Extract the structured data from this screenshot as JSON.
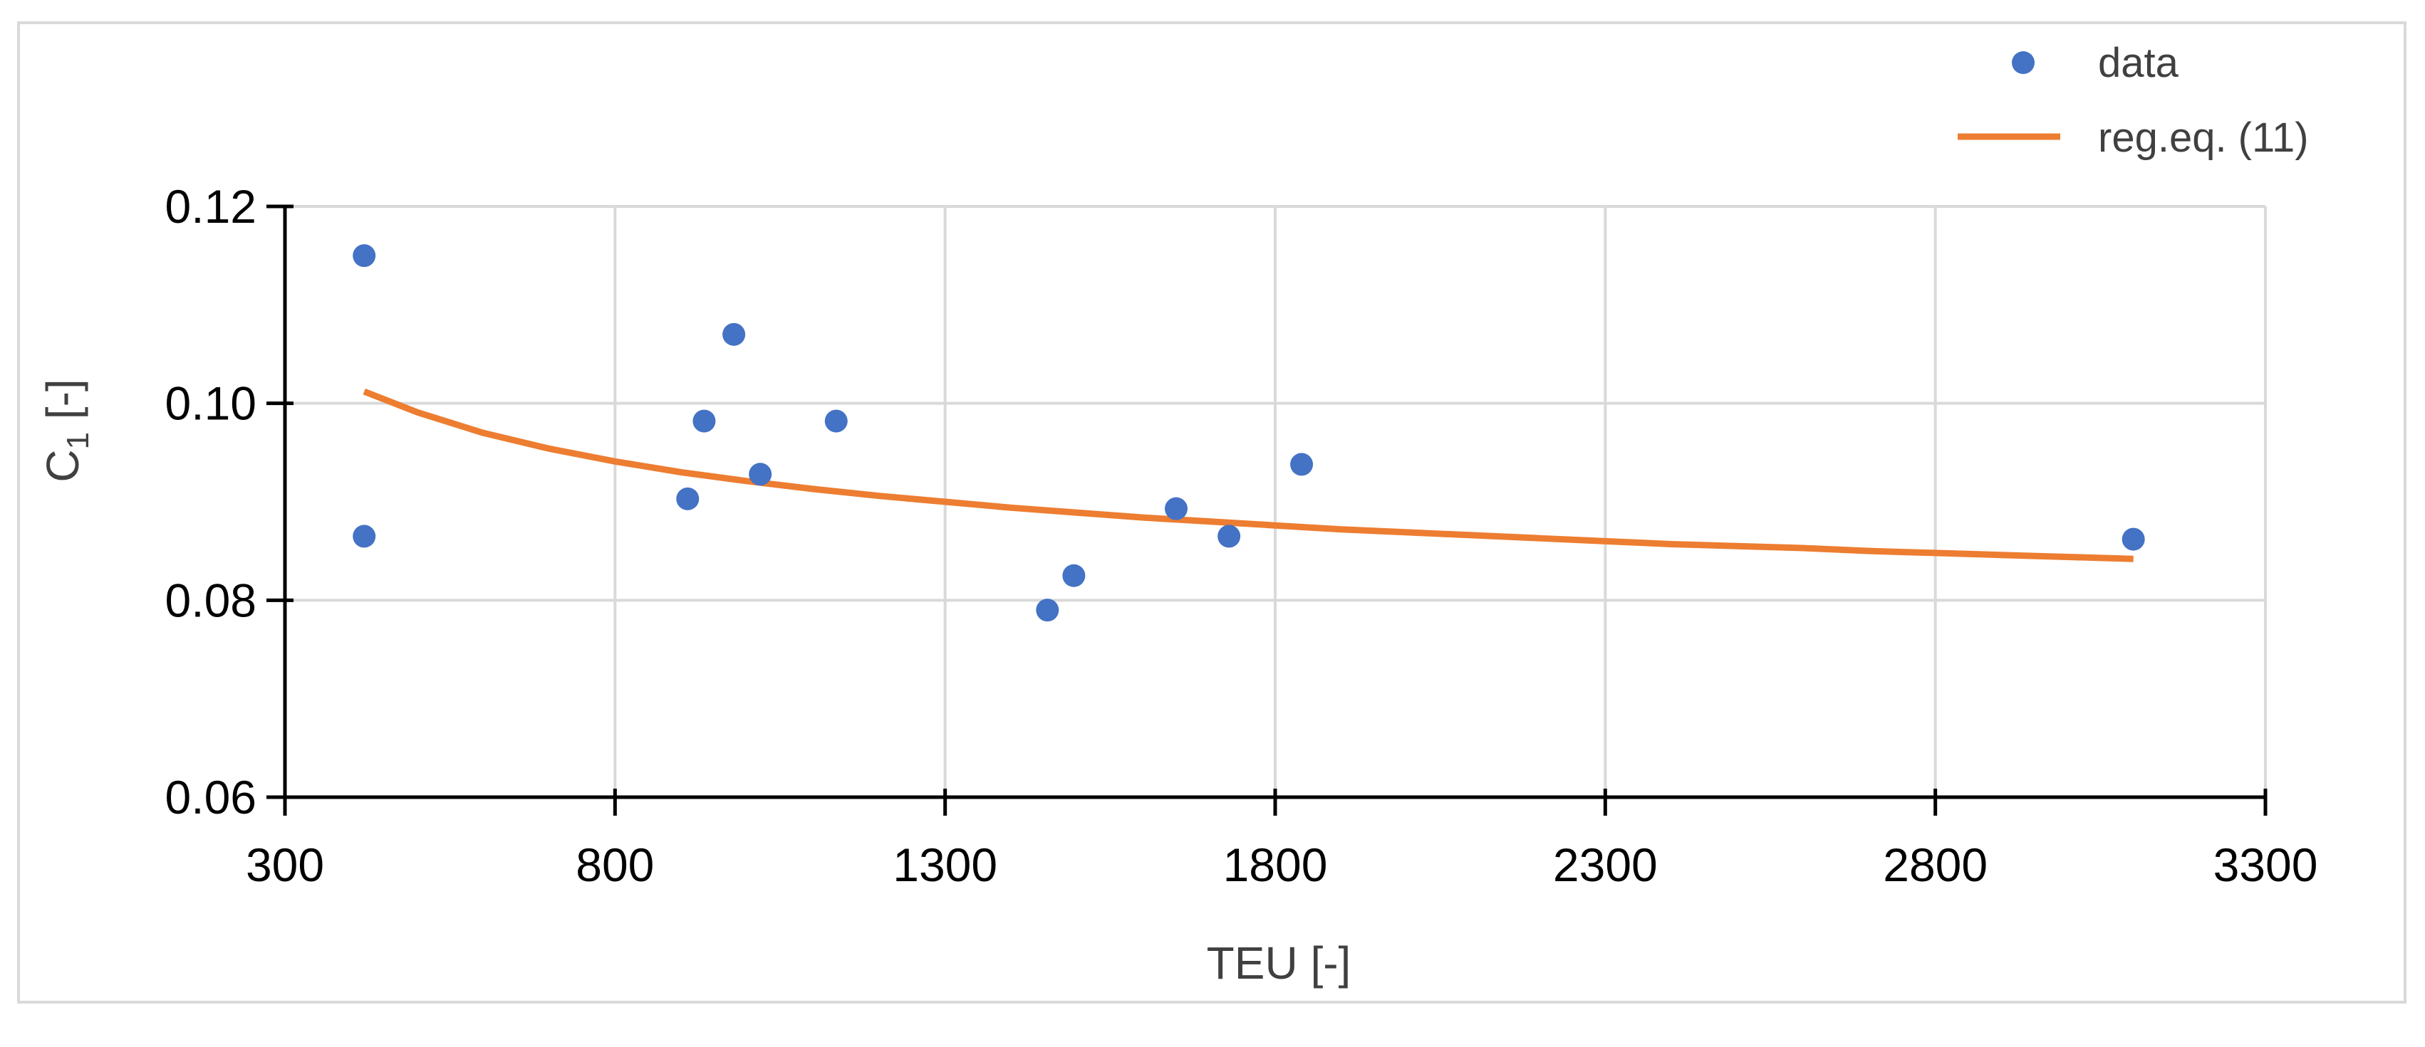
{
  "chart_data": {
    "type": "scatter",
    "xlabel": "TEU [-]",
    "ylabel_main": "C",
    "ylabel_sub": "1",
    "ylabel_suffix": " [-]",
    "xlim": [
      300,
      3300
    ],
    "ylim": [
      0.06,
      0.12
    ],
    "x_ticks": [
      300,
      800,
      1300,
      1800,
      2300,
      2800,
      3300
    ],
    "y_ticks": [
      0.06,
      0.08,
      0.1,
      0.12
    ],
    "x_tick_labels": [
      "300",
      "800",
      "1300",
      "1800",
      "2300",
      "2800",
      "3300"
    ],
    "y_tick_labels": [
      "0.06",
      "0.08",
      "0.10",
      "0.12"
    ],
    "grid": true,
    "legend_position": "top-right",
    "series": [
      {
        "name": "data",
        "kind": "scatter",
        "color": "#4472C4",
        "x": [
          420,
          420,
          910,
          935,
          980,
          1020,
          1135,
          1455,
          1495,
          1650,
          1730,
          1840,
          3100
        ],
        "y": [
          0.115,
          0.0865,
          0.0903,
          0.0982,
          0.107,
          0.0928,
          0.0982,
          0.079,
          0.0825,
          0.0893,
          0.0865,
          0.0938,
          0.0862
        ]
      },
      {
        "name": "reg.eq. (11)",
        "kind": "line",
        "color": "#ED7D31",
        "x": [
          420,
          500,
          600,
          700,
          800,
          900,
          1000,
          1100,
          1200,
          1300,
          1400,
          1500,
          1600,
          1700,
          1800,
          1900,
          2000,
          2100,
          2200,
          2300,
          2400,
          2500,
          2600,
          2700,
          2800,
          2900,
          3000,
          3100
        ],
        "y": [
          0.1012,
          0.0991,
          0.097,
          0.0954,
          0.0941,
          0.093,
          0.0921,
          0.0913,
          0.0906,
          0.09,
          0.0894,
          0.0889,
          0.0884,
          0.088,
          0.0876,
          0.0872,
          0.0869,
          0.0866,
          0.0863,
          0.086,
          0.0857,
          0.0855,
          0.0853,
          0.085,
          0.0848,
          0.0846,
          0.0844,
          0.0842
        ]
      }
    ]
  }
}
